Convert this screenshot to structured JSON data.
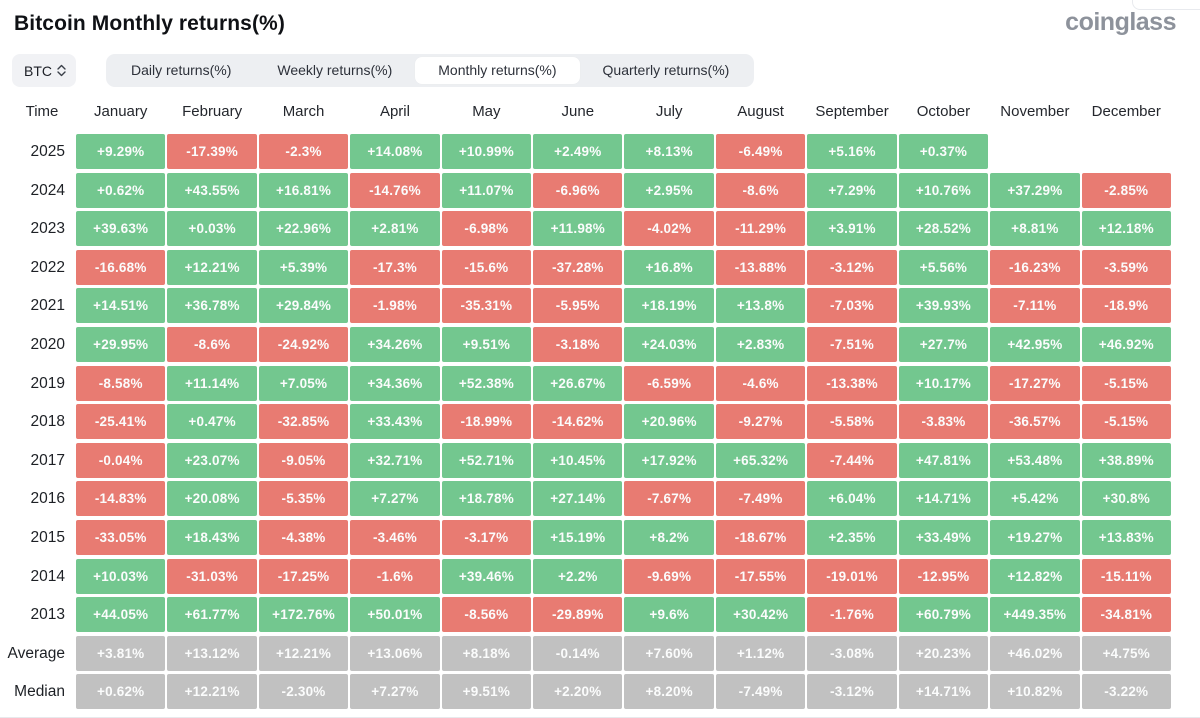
{
  "page": {
    "title": "Bitcoin Monthly returns(%)",
    "brand": "coinglass"
  },
  "controls": {
    "symbol": "BTC",
    "tabs": [
      {
        "label": "Daily returns(%)",
        "active": false
      },
      {
        "label": "Weekly returns(%)",
        "active": false
      },
      {
        "label": "Monthly returns(%)",
        "active": true
      },
      {
        "label": "Quarterly returns(%)",
        "active": false
      }
    ]
  },
  "colors": {
    "positive": "#73c78f",
    "negative": "#e87b72",
    "neutral": "#c1c1c1"
  },
  "table": {
    "time_header": "Time",
    "months": [
      "January",
      "February",
      "March",
      "April",
      "May",
      "June",
      "July",
      "August",
      "September",
      "October",
      "November",
      "December"
    ],
    "rows": [
      {
        "label": "2025",
        "type": "year",
        "values": [
          "+9.29%",
          "-17.39%",
          "-2.3%",
          "+14.08%",
          "+10.99%",
          "+2.49%",
          "+8.13%",
          "-6.49%",
          "+5.16%",
          "+0.37%",
          "",
          ""
        ]
      },
      {
        "label": "2024",
        "type": "year",
        "values": [
          "+0.62%",
          "+43.55%",
          "+16.81%",
          "-14.76%",
          "+11.07%",
          "-6.96%",
          "+2.95%",
          "-8.6%",
          "+7.29%",
          "+10.76%",
          "+37.29%",
          "-2.85%"
        ]
      },
      {
        "label": "2023",
        "type": "year",
        "values": [
          "+39.63%",
          "+0.03%",
          "+22.96%",
          "+2.81%",
          "-6.98%",
          "+11.98%",
          "-4.02%",
          "-11.29%",
          "+3.91%",
          "+28.52%",
          "+8.81%",
          "+12.18%"
        ]
      },
      {
        "label": "2022",
        "type": "year",
        "values": [
          "-16.68%",
          "+12.21%",
          "+5.39%",
          "-17.3%",
          "-15.6%",
          "-37.28%",
          "+16.8%",
          "-13.88%",
          "-3.12%",
          "+5.56%",
          "-16.23%",
          "-3.59%"
        ]
      },
      {
        "label": "2021",
        "type": "year",
        "values": [
          "+14.51%",
          "+36.78%",
          "+29.84%",
          "-1.98%",
          "-35.31%",
          "-5.95%",
          "+18.19%",
          "+13.8%",
          "-7.03%",
          "+39.93%",
          "-7.11%",
          "-18.9%"
        ]
      },
      {
        "label": "2020",
        "type": "year",
        "values": [
          "+29.95%",
          "-8.6%",
          "-24.92%",
          "+34.26%",
          "+9.51%",
          "-3.18%",
          "+24.03%",
          "+2.83%",
          "-7.51%",
          "+27.7%",
          "+42.95%",
          "+46.92%"
        ]
      },
      {
        "label": "2019",
        "type": "year",
        "values": [
          "-8.58%",
          "+11.14%",
          "+7.05%",
          "+34.36%",
          "+52.38%",
          "+26.67%",
          "-6.59%",
          "-4.6%",
          "-13.38%",
          "+10.17%",
          "-17.27%",
          "-5.15%"
        ]
      },
      {
        "label": "2018",
        "type": "year",
        "values": [
          "-25.41%",
          "+0.47%",
          "-32.85%",
          "+33.43%",
          "-18.99%",
          "-14.62%",
          "+20.96%",
          "-9.27%",
          "-5.58%",
          "-3.83%",
          "-36.57%",
          "-5.15%"
        ]
      },
      {
        "label": "2017",
        "type": "year",
        "values": [
          "-0.04%",
          "+23.07%",
          "-9.05%",
          "+32.71%",
          "+52.71%",
          "+10.45%",
          "+17.92%",
          "+65.32%",
          "-7.44%",
          "+47.81%",
          "+53.48%",
          "+38.89%"
        ]
      },
      {
        "label": "2016",
        "type": "year",
        "values": [
          "-14.83%",
          "+20.08%",
          "-5.35%",
          "+7.27%",
          "+18.78%",
          "+27.14%",
          "-7.67%",
          "-7.49%",
          "+6.04%",
          "+14.71%",
          "+5.42%",
          "+30.8%"
        ]
      },
      {
        "label": "2015",
        "type": "year",
        "values": [
          "-33.05%",
          "+18.43%",
          "-4.38%",
          "-3.46%",
          "-3.17%",
          "+15.19%",
          "+8.2%",
          "-18.67%",
          "+2.35%",
          "+33.49%",
          "+19.27%",
          "+13.83%"
        ]
      },
      {
        "label": "2014",
        "type": "year",
        "values": [
          "+10.03%",
          "-31.03%",
          "-17.25%",
          "-1.6%",
          "+39.46%",
          "+2.2%",
          "-9.69%",
          "-17.55%",
          "-19.01%",
          "-12.95%",
          "+12.82%",
          "-15.11%"
        ]
      },
      {
        "label": "2013",
        "type": "year",
        "values": [
          "+44.05%",
          "+61.77%",
          "+172.76%",
          "+50.01%",
          "-8.56%",
          "-29.89%",
          "+9.6%",
          "+30.42%",
          "-1.76%",
          "+60.79%",
          "+449.35%",
          "-34.81%"
        ]
      },
      {
        "label": "Average",
        "type": "summary",
        "values": [
          "+3.81%",
          "+13.12%",
          "+12.21%",
          "+13.06%",
          "+8.18%",
          "-0.14%",
          "+7.60%",
          "+1.12%",
          "-3.08%",
          "+20.23%",
          "+46.02%",
          "+4.75%"
        ]
      },
      {
        "label": "Median",
        "type": "summary",
        "values": [
          "+0.62%",
          "+12.21%",
          "-2.30%",
          "+7.27%",
          "+9.51%",
          "+2.20%",
          "+8.20%",
          "-7.49%",
          "-3.12%",
          "+14.71%",
          "+10.82%",
          "-3.22%"
        ]
      }
    ]
  }
}
